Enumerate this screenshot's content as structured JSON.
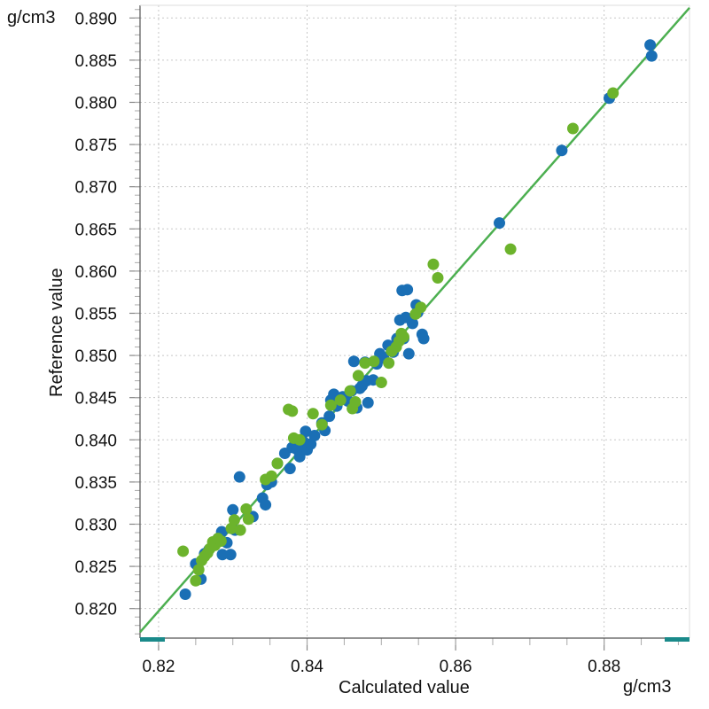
{
  "chart_data": {
    "type": "scatter",
    "title": "",
    "xlabel": "Calculated value",
    "ylabel": "Reference value",
    "x_unit": "g/cm3",
    "y_unit": "g/cm3",
    "xlim": [
      0.8175,
      0.8915
    ],
    "ylim": [
      0.8165,
      0.8915
    ],
    "x_ticks": [
      "0.82",
      "0.84",
      "0.86",
      "0.88"
    ],
    "y_ticks": [
      "0.820",
      "0.825",
      "0.830",
      "0.835",
      "0.840",
      "0.845",
      "0.850",
      "0.855",
      "0.860",
      "0.865",
      "0.870",
      "0.875",
      "0.880",
      "0.885",
      "0.890"
    ],
    "grid": true,
    "legend": "none",
    "fit_line": {
      "x": [
        0.8175,
        0.8915
      ],
      "y": [
        0.8172,
        0.8912
      ],
      "color": "#4caf50"
    },
    "series": [
      {
        "color": "#1a6fb5",
        "points": [
          [
            0.8236,
            0.8217
          ],
          [
            0.825,
            0.8253
          ],
          [
            0.8257,
            0.8235
          ],
          [
            0.8262,
            0.8265
          ],
          [
            0.8268,
            0.827
          ],
          [
            0.8274,
            0.8276
          ],
          [
            0.828,
            0.8283
          ],
          [
            0.8285,
            0.8291
          ],
          [
            0.8286,
            0.8264
          ],
          [
            0.8292,
            0.8278
          ],
          [
            0.8297,
            0.8264
          ],
          [
            0.83,
            0.8317
          ],
          [
            0.8303,
            0.8293
          ],
          [
            0.8309,
            0.8356
          ],
          [
            0.8327,
            0.8309
          ],
          [
            0.834,
            0.8331
          ],
          [
            0.8344,
            0.8323
          ],
          [
            0.8346,
            0.8347
          ],
          [
            0.8352,
            0.835
          ],
          [
            0.836,
            0.8372
          ],
          [
            0.837,
            0.8384
          ],
          [
            0.8377,
            0.8366
          ],
          [
            0.838,
            0.8391
          ],
          [
            0.8383,
            0.8401
          ],
          [
            0.8386,
            0.8389
          ],
          [
            0.839,
            0.838
          ],
          [
            0.8395,
            0.8398
          ],
          [
            0.8398,
            0.841
          ],
          [
            0.84,
            0.8388
          ],
          [
            0.8405,
            0.8395
          ],
          [
            0.841,
            0.8405
          ],
          [
            0.842,
            0.842
          ],
          [
            0.8424,
            0.8411
          ],
          [
            0.843,
            0.8428
          ],
          [
            0.8432,
            0.8447
          ],
          [
            0.8436,
            0.8454
          ],
          [
            0.844,
            0.844
          ],
          [
            0.8448,
            0.8451
          ],
          [
            0.8455,
            0.8446
          ],
          [
            0.846,
            0.8458
          ],
          [
            0.8463,
            0.8493
          ],
          [
            0.8467,
            0.8438
          ],
          [
            0.8471,
            0.8461
          ],
          [
            0.8474,
            0.8464
          ],
          [
            0.8478,
            0.8492
          ],
          [
            0.848,
            0.847
          ],
          [
            0.8482,
            0.8444
          ],
          [
            0.8489,
            0.8471
          ],
          [
            0.8494,
            0.849
          ],
          [
            0.8498,
            0.8502
          ],
          [
            0.8503,
            0.8497
          ],
          [
            0.8509,
            0.8512
          ],
          [
            0.8516,
            0.8504
          ],
          [
            0.8521,
            0.852
          ],
          [
            0.8525,
            0.8542
          ],
          [
            0.8528,
            0.8577
          ],
          [
            0.853,
            0.852
          ],
          [
            0.8533,
            0.8545
          ],
          [
            0.8535,
            0.8578
          ],
          [
            0.8537,
            0.8502
          ],
          [
            0.8542,
            0.8538
          ],
          [
            0.8547,
            0.856
          ],
          [
            0.8549,
            0.8551
          ],
          [
            0.8555,
            0.8525
          ],
          [
            0.8557,
            0.852
          ],
          [
            0.8659,
            0.8657
          ],
          [
            0.8743,
            0.8743
          ],
          [
            0.8807,
            0.8805
          ],
          [
            0.8862,
            0.8868
          ],
          [
            0.8864,
            0.8855
          ]
        ]
      },
      {
        "color": "#6cb32c",
        "points": [
          [
            0.8233,
            0.8268
          ],
          [
            0.825,
            0.8233
          ],
          [
            0.8254,
            0.8246
          ],
          [
            0.8258,
            0.8257
          ],
          [
            0.8262,
            0.8262
          ],
          [
            0.8266,
            0.8266
          ],
          [
            0.8269,
            0.8271
          ],
          [
            0.8273,
            0.8279
          ],
          [
            0.8276,
            0.8275
          ],
          [
            0.828,
            0.8283
          ],
          [
            0.8284,
            0.828
          ],
          [
            0.8298,
            0.8295
          ],
          [
            0.8302,
            0.8305
          ],
          [
            0.831,
            0.8293
          ],
          [
            0.8318,
            0.8318
          ],
          [
            0.8321,
            0.8306
          ],
          [
            0.8344,
            0.8353
          ],
          [
            0.8352,
            0.8357
          ],
          [
            0.836,
            0.8372
          ],
          [
            0.8375,
            0.8436
          ],
          [
            0.838,
            0.8434
          ],
          [
            0.8382,
            0.8402
          ],
          [
            0.839,
            0.84
          ],
          [
            0.8408,
            0.8431
          ],
          [
            0.842,
            0.8418
          ],
          [
            0.8432,
            0.8441
          ],
          [
            0.8445,
            0.8447
          ],
          [
            0.8458,
            0.8458
          ],
          [
            0.8461,
            0.8437
          ],
          [
            0.8465,
            0.8445
          ],
          [
            0.8469,
            0.8476
          ],
          [
            0.8478,
            0.8491
          ],
          [
            0.849,
            0.8493
          ],
          [
            0.85,
            0.8468
          ],
          [
            0.851,
            0.8491
          ],
          [
            0.8514,
            0.8505
          ],
          [
            0.852,
            0.851
          ],
          [
            0.8524,
            0.8517
          ],
          [
            0.8527,
            0.8526
          ],
          [
            0.853,
            0.8522
          ],
          [
            0.8546,
            0.8549
          ],
          [
            0.8553,
            0.8557
          ],
          [
            0.857,
            0.8608
          ],
          [
            0.8576,
            0.8592
          ],
          [
            0.8674,
            0.8626
          ],
          [
            0.8758,
            0.8769
          ],
          [
            0.8812,
            0.8811
          ]
        ]
      }
    ]
  }
}
